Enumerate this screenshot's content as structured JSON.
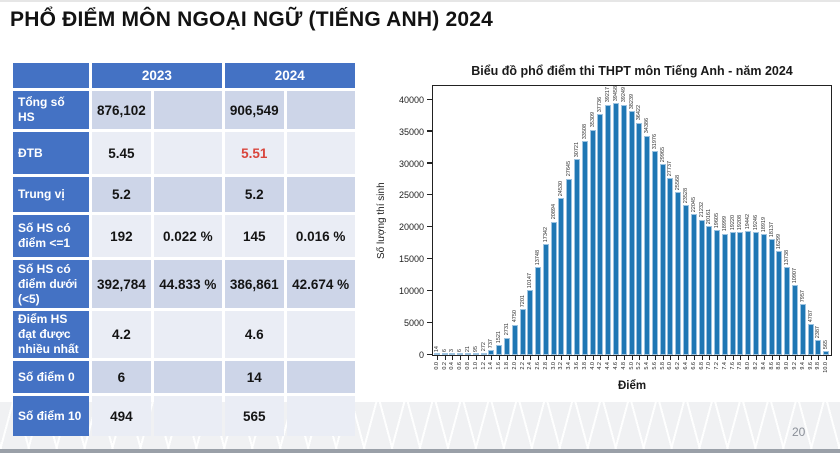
{
  "slide": {
    "title": "PHỔ ĐIỂM MÔN NGOẠI NGỮ (TIẾNG ANH) 2024",
    "page_number": "20"
  },
  "colors": {
    "table_header_blue": "#4472C4",
    "row_band_dark": "#CDD5E8",
    "row_band_light": "#EAEDF5",
    "highlight_red": "#D9453C",
    "bar_blue": "#1F77B4"
  },
  "table": {
    "year_headers": [
      "2023",
      "2024"
    ],
    "rows": [
      {
        "label": "Tổng số HS",
        "v2023": "876,102",
        "p2023": "",
        "v2024": "906,549",
        "p2024": "",
        "highlight_2024": false
      },
      {
        "label": "ĐTB",
        "v2023": "5.45",
        "p2023": "",
        "v2024": "5.51",
        "p2024": "",
        "highlight_2024": true
      },
      {
        "label": "Trung vị",
        "v2023": "5.2",
        "p2023": "",
        "v2024": "5.2",
        "p2024": "",
        "highlight_2024": false
      },
      {
        "label": "Số HS có điểm <=1",
        "v2023": "192",
        "p2023": "0.022 %",
        "v2024": "145",
        "p2024": "0.016 %",
        "highlight_2024": false
      },
      {
        "label": "Số HS có điểm dưới (<5)",
        "v2023": "392,784",
        "p2023": "44.833 %",
        "v2024": "386,861",
        "p2024": "42.674 %",
        "highlight_2024": false
      },
      {
        "label": "Điểm HS đạt được nhiều nhất",
        "v2023": "4.2",
        "p2023": "",
        "v2024": "4.6",
        "p2024": "",
        "highlight_2024": false
      },
      {
        "label": "Số điểm 0",
        "v2023": "6",
        "p2023": "",
        "v2024": "14",
        "p2024": "",
        "highlight_2024": false
      },
      {
        "label": "Số điểm 10",
        "v2023": "494",
        "p2023": "",
        "v2024": "565",
        "p2024": "",
        "highlight_2024": false
      }
    ]
  },
  "chart_data": {
    "type": "bar",
    "title": "Biểu đồ phổ điểm thi THPT môn Tiếng Anh - năm 2024",
    "xlabel": "Điểm",
    "ylabel": "Số lượng thí sinh",
    "categories": [
      "0.0",
      "0.2",
      "0.4",
      "0.6",
      "0.8",
      "1.0",
      "1.2",
      "1.4",
      "1.6",
      "1.8",
      "2.0",
      "2.2",
      "2.4",
      "2.6",
      "2.8",
      "3.0",
      "3.2",
      "3.4",
      "3.6",
      "3.8",
      "4.0",
      "4.2",
      "4.4",
      "4.6",
      "4.8",
      "5.0",
      "5.2",
      "5.4",
      "5.6",
      "5.8",
      "6.0",
      "6.2",
      "6.4",
      "6.6",
      "6.8",
      "7.0",
      "7.2",
      "7.4",
      "7.6",
      "7.8",
      "8.0",
      "8.2",
      "8.4",
      "8.6",
      "8.8",
      "9.0",
      "9.2",
      "9.4",
      "9.6",
      "9.8",
      "10.0"
    ],
    "values": [
      14,
      6,
      3,
      6,
      21,
      95,
      272,
      737,
      1521,
      2731,
      4750,
      7201,
      10147,
      13748,
      17342,
      20894,
      24530,
      27645,
      30721,
      33508,
      35309,
      37736,
      39217,
      39458,
      39249,
      38239,
      36422,
      34386,
      31976,
      29965,
      27737,
      25568,
      23528,
      22045,
      21232,
      20161,
      19605,
      18999,
      19220,
      19208,
      19442,
      19246,
      18919,
      18137,
      16299,
      13738,
      10907,
      7957,
      4787,
      2387,
      565
    ],
    "yticks": [
      0,
      5000,
      10000,
      15000,
      20000,
      25000,
      30000,
      35000,
      40000
    ],
    "ylim": [
      0,
      42000
    ],
    "grid": false,
    "legend": null,
    "bar_labels_rotated": true
  }
}
